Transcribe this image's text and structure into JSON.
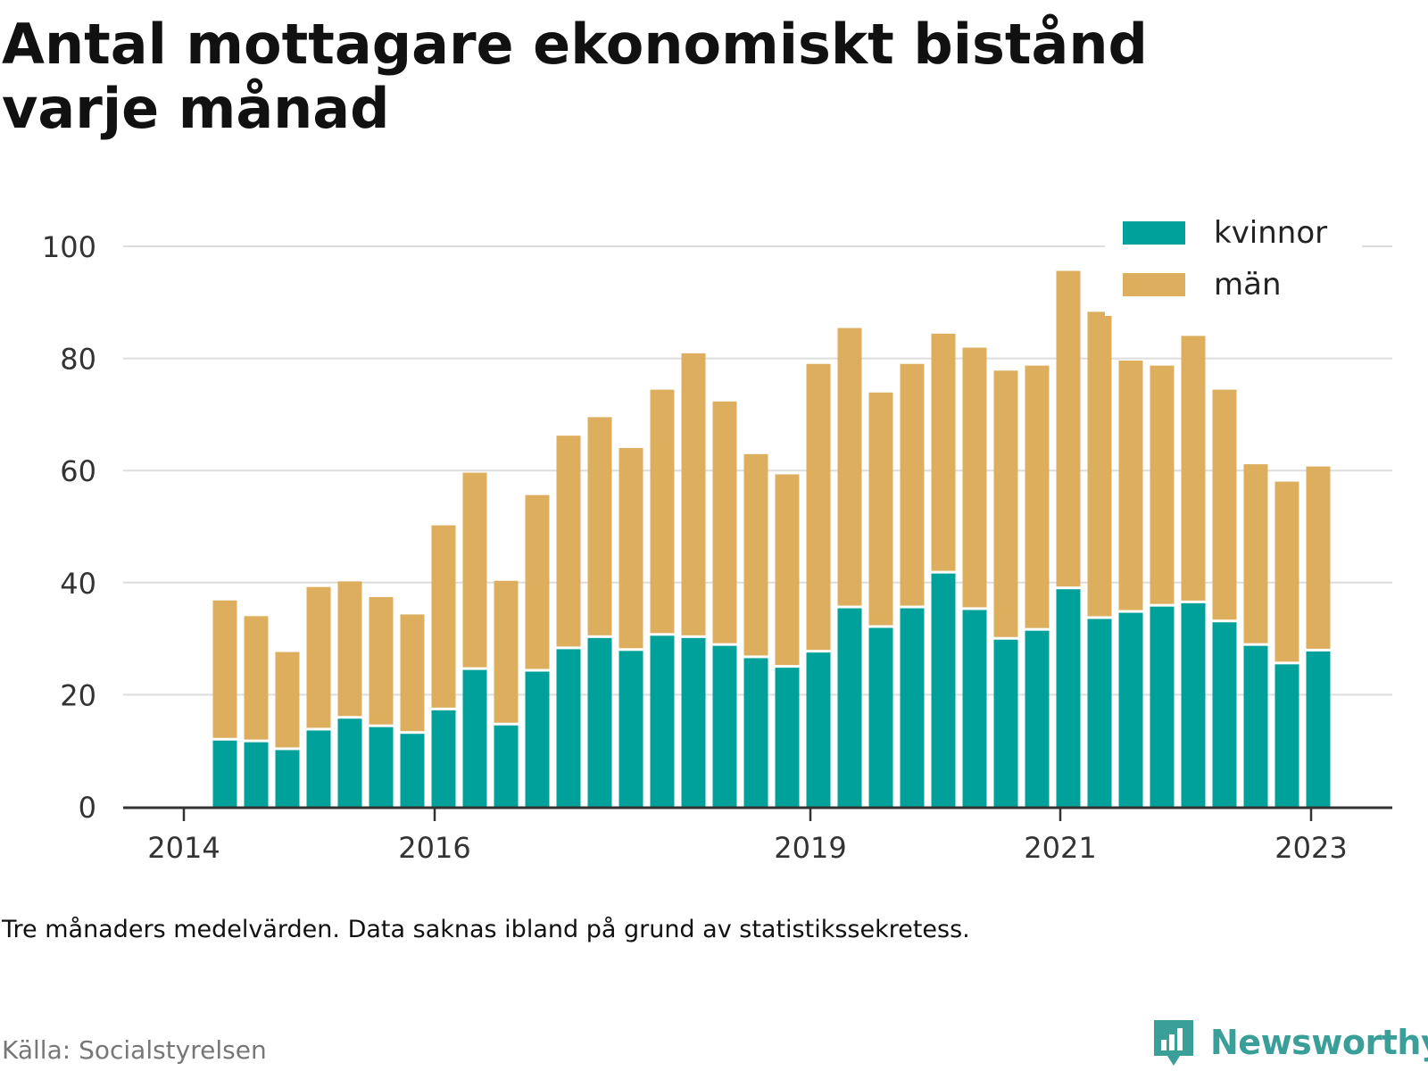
{
  "title": "Antal mottagare ekonomiskt bistånd varje månad",
  "note": "Tre månaders medelvärden. Data saknas ibland på grund av statistikssekretess.",
  "source": "Källa: Socialstyrelsen",
  "brand": {
    "name": "Newsworthy",
    "logo_icon": "bar-chart-speech-bubble-icon"
  },
  "colors": {
    "kvinnor": "#00a19a",
    "man": "#dcae5e",
    "grid": "#dddddd",
    "axis": "#333333",
    "brand": "#3a9e99"
  },
  "chart_data": {
    "type": "bar",
    "stacked": true,
    "ylim": [
      0,
      100
    ],
    "yticks": [
      0,
      20,
      40,
      60,
      80,
      100
    ],
    "x_tick_labels": [
      "2014",
      "2016",
      "2019",
      "2021",
      "2023"
    ],
    "legend": {
      "position": "top-right",
      "entries": [
        "kvinnor",
        "män"
      ]
    },
    "grid": true,
    "series": [
      {
        "name": "kvinnor",
        "values": [
          12.3,
          12.0,
          10.6,
          14.1,
          16.2,
          14.7,
          13.5,
          17.7,
          24.9,
          15.0,
          24.6,
          28.6,
          30.6,
          28.3,
          31.0,
          30.6,
          29.2,
          27.0,
          25.3,
          28.0,
          35.9,
          32.4,
          35.9,
          42.1,
          35.6,
          30.3,
          31.9,
          39.3,
          34.0,
          35.1,
          36.2,
          36.8,
          33.4,
          29.2,
          25.9,
          28.2
        ]
      },
      {
        "name": "män",
        "values": [
          25.0,
          22.5,
          17.5,
          25.6,
          24.5,
          23.2,
          21.3,
          33.0,
          35.2,
          25.8,
          31.5,
          38.1,
          39.4,
          36.2,
          43.9,
          50.8,
          43.6,
          36.4,
          34.5,
          51.5,
          50.0,
          42.0,
          43.6,
          42.8,
          46.8,
          48.0,
          47.3,
          56.8,
          54.8,
          45.0,
          43.0,
          47.7,
          41.5,
          32.4,
          32.6,
          33.0
        ]
      }
    ]
  }
}
